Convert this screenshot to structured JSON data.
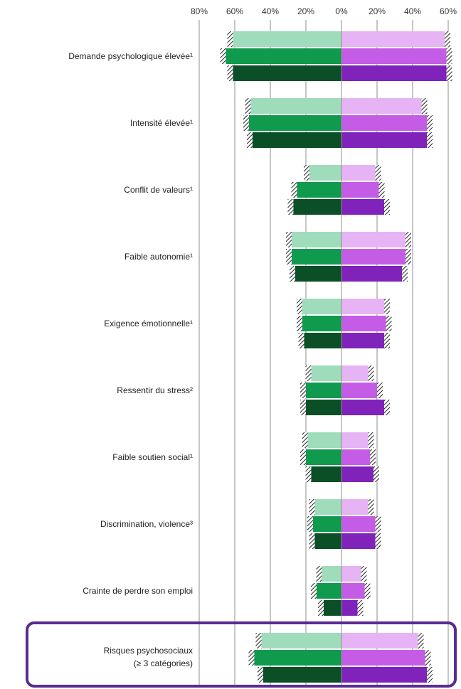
{
  "chart_data": {
    "type": "bar",
    "orientation": "horizontal-diverging",
    "x_ticks_left": [
      "80%",
      "60%",
      "40%",
      "20%",
      "0%"
    ],
    "x_ticks_right": [
      "20%",
      "40%",
      "60%"
    ],
    "xlim_left": [
      0,
      80
    ],
    "xlim_right": [
      0,
      60
    ],
    "grid": true,
    "categories": [
      {
        "label": "Demande psychologique élevée¹",
        "label2": ""
      },
      {
        "label": "Intensité élevée¹",
        "label2": ""
      },
      {
        "label": "Conflit de valeurs¹",
        "label2": ""
      },
      {
        "label": "Faible autonomie¹",
        "label2": ""
      },
      {
        "label": "Exigence émotionnelle¹",
        "label2": ""
      },
      {
        "label": "Ressentir du stress²",
        "label2": ""
      },
      {
        "label": "Faible soutien social¹",
        "label2": ""
      },
      {
        "label": "Discrimination, violence³",
        "label2": ""
      },
      {
        "label": "Crainte de perdre son emploi",
        "label2": ""
      },
      {
        "label": "Risques psychosociaux",
        "label2": "(≥ 3 catégories)"
      }
    ],
    "left_side": {
      "colors": [
        "#9fdcbc",
        "#0f9a4e",
        "#0a4f25"
      ],
      "values": [
        [
          63,
          67,
          63
        ],
        [
          53,
          54,
          52
        ],
        [
          20,
          27,
          29
        ],
        [
          30,
          30,
          28
        ],
        [
          24,
          24,
          23
        ],
        [
          19,
          22,
          22
        ],
        [
          21,
          22,
          19
        ],
        [
          17,
          18,
          17
        ],
        [
          13,
          16,
          12
        ],
        [
          47,
          51,
          46
        ]
      ]
    },
    "right_side": {
      "colors": [
        "#e6b4f4",
        "#c55ce6",
        "#7f23ba"
      ],
      "values": [
        [
          60,
          61,
          61
        ],
        [
          47,
          50,
          50
        ],
        [
          21,
          23,
          26
        ],
        [
          38,
          38,
          36
        ],
        [
          26,
          27,
          26
        ],
        [
          17,
          22,
          26
        ],
        [
          17,
          18,
          20
        ],
        [
          17,
          21,
          21
        ],
        [
          13,
          15,
          11
        ],
        [
          45,
          49,
          50
        ]
      ]
    },
    "highlight_category_index": 9,
    "highlight_color": "#5b2a92"
  }
}
